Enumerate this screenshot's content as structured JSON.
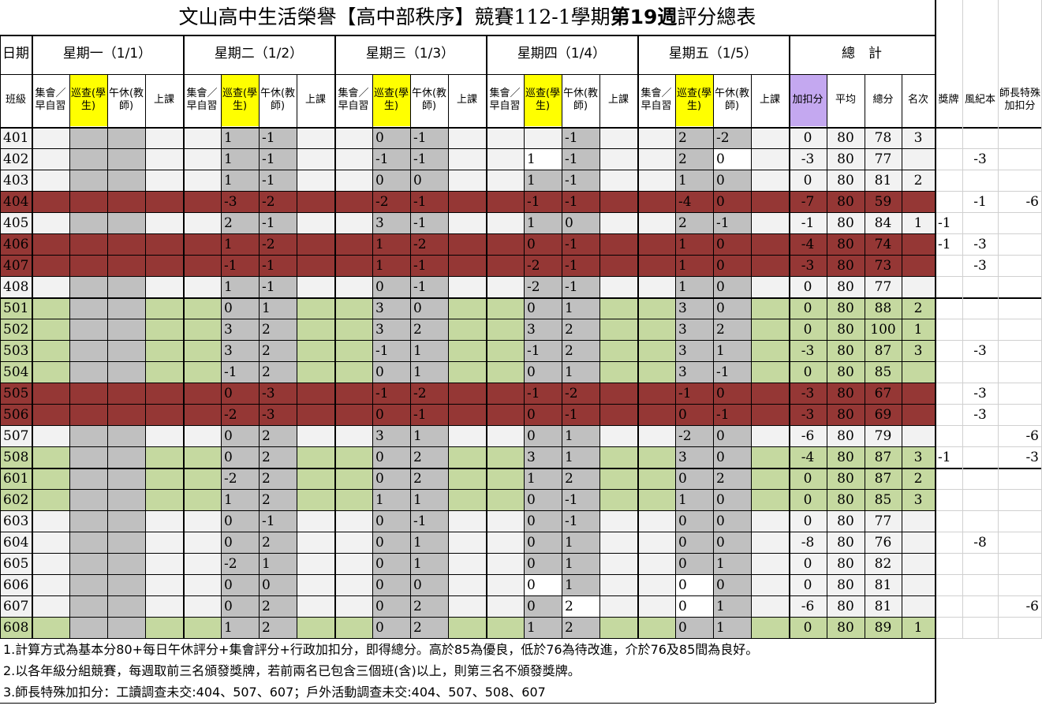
{
  "title": {
    "part1": "文山高中生活榮譽【高中部秩序】競賽112-1學期",
    "bold": "第19週",
    "part2": "評分總表"
  },
  "header": {
    "date_label": "日期",
    "class_label": "班級",
    "days": [
      "星期一（1/1）",
      "星期二（1/2）",
      "星期三（1/3）",
      "星期四（1/4）",
      "星期五（1/5）"
    ],
    "total_label": "總　計",
    "sub_columns": [
      "集會／早自習",
      "巡查(學生)",
      "午休(教師)",
      "上課"
    ],
    "total_columns": [
      "加扣分",
      "平均",
      "總分",
      "名次"
    ],
    "extra_columns": [
      "獎牌",
      "風紀本",
      "師長特殊加扣分"
    ]
  },
  "colors": {
    "green": "#c5d9a0",
    "red": "#953735",
    "gray": "#c0c0c0",
    "yellow": "#ffff00",
    "purple": "#c4a8f0",
    "white_row": "#f2f2f2"
  },
  "rows": [
    {
      "cls": "401",
      "bg": "white",
      "d2": [
        "1",
        "-1"
      ],
      "d3": [
        "0",
        "-1"
      ],
      "d4": [
        "",
        "-1"
      ],
      "d5": [
        "2",
        "-2"
      ],
      "adj": "0",
      "avg": "80",
      "total": "78",
      "rank": "3",
      "medal": "",
      "disc": "",
      "special": ""
    },
    {
      "cls": "402",
      "bg": "white",
      "d2": [
        "1",
        "-1"
      ],
      "d3": [
        "-1",
        "-1"
      ],
      "d4": [
        "1",
        "-1"
      ],
      "d5": [
        "2",
        "0"
      ],
      "adj": "-3",
      "avg": "80",
      "total": "77",
      "rank": "",
      "medal": "",
      "disc": "-3",
      "special": ""
    },
    {
      "cls": "403",
      "bg": "white",
      "d2": [
        "1",
        "-1"
      ],
      "d3": [
        "0",
        "0"
      ],
      "d4": [
        "1",
        "-1"
      ],
      "d5": [
        "1",
        "0"
      ],
      "adj": "0",
      "avg": "80",
      "total": "81",
      "rank": "2",
      "medal": "",
      "disc": "",
      "special": ""
    },
    {
      "cls": "404",
      "bg": "red",
      "d2": [
        "-3",
        "-2"
      ],
      "d3": [
        "-2",
        "-1"
      ],
      "d4": [
        "-1",
        "-1"
      ],
      "d5": [
        "-4",
        "0"
      ],
      "adj": "-7",
      "avg": "80",
      "total": "59",
      "rank": "",
      "medal": "",
      "disc": "-1",
      "special": "-6"
    },
    {
      "cls": "405",
      "bg": "white",
      "d2": [
        "2",
        "-1"
      ],
      "d3": [
        "3",
        "-1"
      ],
      "d4": [
        "1",
        "0"
      ],
      "d5": [
        "2",
        "-1"
      ],
      "adj": "-1",
      "avg": "80",
      "total": "84",
      "rank": "1",
      "medal": "-1",
      "disc": "",
      "special": ""
    },
    {
      "cls": "406",
      "bg": "red",
      "d2": [
        "1",
        "-2"
      ],
      "d3": [
        "1",
        "-2"
      ],
      "d4": [
        "0",
        "-1"
      ],
      "d5": [
        "1",
        "0"
      ],
      "adj": "-4",
      "avg": "80",
      "total": "74",
      "rank": "",
      "medal": "-1",
      "disc": "-3",
      "special": ""
    },
    {
      "cls": "407",
      "bg": "red",
      "d2": [
        "-1",
        "-1"
      ],
      "d3": [
        "1",
        "-1"
      ],
      "d4": [
        "-2",
        "-1"
      ],
      "d5": [
        "1",
        "0"
      ],
      "adj": "-3",
      "avg": "80",
      "total": "73",
      "rank": "",
      "medal": "",
      "disc": "-3",
      "special": ""
    },
    {
      "cls": "408",
      "bg": "white",
      "d2": [
        "1",
        "-1"
      ],
      "d3": [
        "0",
        "-1"
      ],
      "d4": [
        "-2",
        "-1"
      ],
      "d5": [
        "1",
        "0"
      ],
      "adj": "0",
      "avg": "80",
      "total": "77",
      "rank": "",
      "medal": "",
      "disc": "",
      "special": ""
    },
    {
      "cls": "501",
      "bg": "green",
      "d2": [
        "0",
        "1"
      ],
      "d3": [
        "3",
        "0"
      ],
      "d4": [
        "0",
        "1"
      ],
      "d5": [
        "3",
        "0"
      ],
      "adj": "0",
      "avg": "80",
      "total": "88",
      "rank": "2",
      "medal": "",
      "disc": "",
      "special": ""
    },
    {
      "cls": "502",
      "bg": "green",
      "d2": [
        "3",
        "2"
      ],
      "d3": [
        "3",
        "2"
      ],
      "d4": [
        "3",
        "2"
      ],
      "d5": [
        "3",
        "2"
      ],
      "adj": "0",
      "avg": "80",
      "total": "100",
      "rank": "1",
      "medal": "",
      "disc": "",
      "special": ""
    },
    {
      "cls": "503",
      "bg": "green",
      "d2": [
        "3",
        "2"
      ],
      "d3": [
        "-1",
        "1"
      ],
      "d4": [
        "-1",
        "2"
      ],
      "d5": [
        "3",
        "1"
      ],
      "adj": "-3",
      "avg": "80",
      "total": "87",
      "rank": "3",
      "medal": "",
      "disc": "-3",
      "special": ""
    },
    {
      "cls": "504",
      "bg": "green",
      "d2": [
        "-1",
        "2"
      ],
      "d3": [
        "0",
        "1"
      ],
      "d4": [
        "0",
        "1"
      ],
      "d5": [
        "3",
        "-1"
      ],
      "adj": "0",
      "avg": "80",
      "total": "85",
      "rank": "",
      "medal": "",
      "disc": "",
      "special": ""
    },
    {
      "cls": "505",
      "bg": "red",
      "d2": [
        "0",
        "-3"
      ],
      "d3": [
        "-1",
        "-2"
      ],
      "d4": [
        "-1",
        "-2"
      ],
      "d5": [
        "-1",
        "0"
      ],
      "adj": "-3",
      "avg": "80",
      "total": "67",
      "rank": "",
      "medal": "",
      "disc": "-3",
      "special": ""
    },
    {
      "cls": "506",
      "bg": "red",
      "d2": [
        "-2",
        "-3"
      ],
      "d3": [
        "0",
        "-1"
      ],
      "d4": [
        "0",
        "-1"
      ],
      "d5": [
        "0",
        "-1"
      ],
      "adj": "-3",
      "avg": "80",
      "total": "69",
      "rank": "",
      "medal": "",
      "disc": "-3",
      "special": ""
    },
    {
      "cls": "507",
      "bg": "white",
      "d2": [
        "0",
        "2"
      ],
      "d3": [
        "3",
        "1"
      ],
      "d4": [
        "0",
        "1"
      ],
      "d5": [
        "-2",
        "0"
      ],
      "adj": "-6",
      "avg": "80",
      "total": "79",
      "rank": "",
      "medal": "",
      "disc": "",
      "special": "-6"
    },
    {
      "cls": "508",
      "bg": "green",
      "d2": [
        "0",
        "2"
      ],
      "d3": [
        "0",
        "2"
      ],
      "d4": [
        "3",
        "1"
      ],
      "d5": [
        "3",
        "0"
      ],
      "adj": "-4",
      "avg": "80",
      "total": "87",
      "rank": "3",
      "medal": "-1",
      "disc": "",
      "special": "-3"
    },
    {
      "cls": "601",
      "bg": "green",
      "d2": [
        "-2",
        "2"
      ],
      "d3": [
        "0",
        "2"
      ],
      "d4": [
        "1",
        "2"
      ],
      "d5": [
        "0",
        "2"
      ],
      "adj": "0",
      "avg": "80",
      "total": "87",
      "rank": "2",
      "medal": "",
      "disc": "",
      "special": ""
    },
    {
      "cls": "602",
      "bg": "green",
      "d2": [
        "1",
        "2"
      ],
      "d3": [
        "1",
        "1"
      ],
      "d4": [
        "0",
        "-1"
      ],
      "d5": [
        "1",
        "0"
      ],
      "adj": "0",
      "avg": "80",
      "total": "85",
      "rank": "3",
      "medal": "",
      "disc": "",
      "special": ""
    },
    {
      "cls": "603",
      "bg": "white",
      "d2": [
        "0",
        "-1"
      ],
      "d3": [
        "0",
        "-1"
      ],
      "d4": [
        "0",
        "-1"
      ],
      "d5": [
        "0",
        "0"
      ],
      "adj": "0",
      "avg": "80",
      "total": "77",
      "rank": "",
      "medal": "",
      "disc": "",
      "special": ""
    },
    {
      "cls": "604",
      "bg": "white",
      "d2": [
        "0",
        "2"
      ],
      "d3": [
        "0",
        "1"
      ],
      "d4": [
        "0",
        "1"
      ],
      "d5": [
        "0",
        "0"
      ],
      "adj": "-8",
      "avg": "80",
      "total": "76",
      "rank": "",
      "medal": "",
      "disc": "-8",
      "special": ""
    },
    {
      "cls": "605",
      "bg": "white",
      "d2": [
        "-2",
        "1"
      ],
      "d3": [
        "0",
        "1"
      ],
      "d4": [
        "0",
        "1"
      ],
      "d5": [
        "0",
        "1"
      ],
      "adj": "0",
      "avg": "80",
      "total": "82",
      "rank": "",
      "medal": "",
      "disc": "",
      "special": ""
    },
    {
      "cls": "606",
      "bg": "white",
      "d2": [
        "0",
        "0"
      ],
      "d3": [
        "0",
        "0"
      ],
      "d4": [
        "0",
        "1"
      ],
      "d5": [
        "0",
        "0"
      ],
      "adj": "0",
      "avg": "80",
      "total": "81",
      "rank": "",
      "medal": "",
      "disc": "",
      "special": ""
    },
    {
      "cls": "607",
      "bg": "white",
      "d2": [
        "0",
        "2"
      ],
      "d3": [
        "0",
        "2"
      ],
      "d4": [
        "0",
        "2"
      ],
      "d5": [
        "0",
        "1"
      ],
      "adj": "-6",
      "avg": "80",
      "total": "81",
      "rank": "",
      "medal": "",
      "disc": "",
      "special": "-6"
    },
    {
      "cls": "608",
      "bg": "green",
      "d2": [
        "1",
        "2"
      ],
      "d3": [
        "0",
        "2"
      ],
      "d4": [
        "1",
        "2"
      ],
      "d5": [
        "0",
        "1"
      ],
      "adj": "0",
      "avg": "80",
      "total": "89",
      "rank": "1",
      "medal": "",
      "disc": "",
      "special": ""
    }
  ],
  "notes": [
    "1.計算方式為基本分80+每日午休評分+集會評分+行政加扣分，即得總分。高於85為優良，低於76為待改進，介於76及85間為良好。",
    "2.以各年級分組競賽，每週取前三名頒發獎牌，若前兩名已包含三個班(含)以上，則第三名不頒發獎牌。",
    "3.師長特殊加扣分：工讀調查未交:404、507、607；戶外活動調查未交:404、507、508、607"
  ]
}
